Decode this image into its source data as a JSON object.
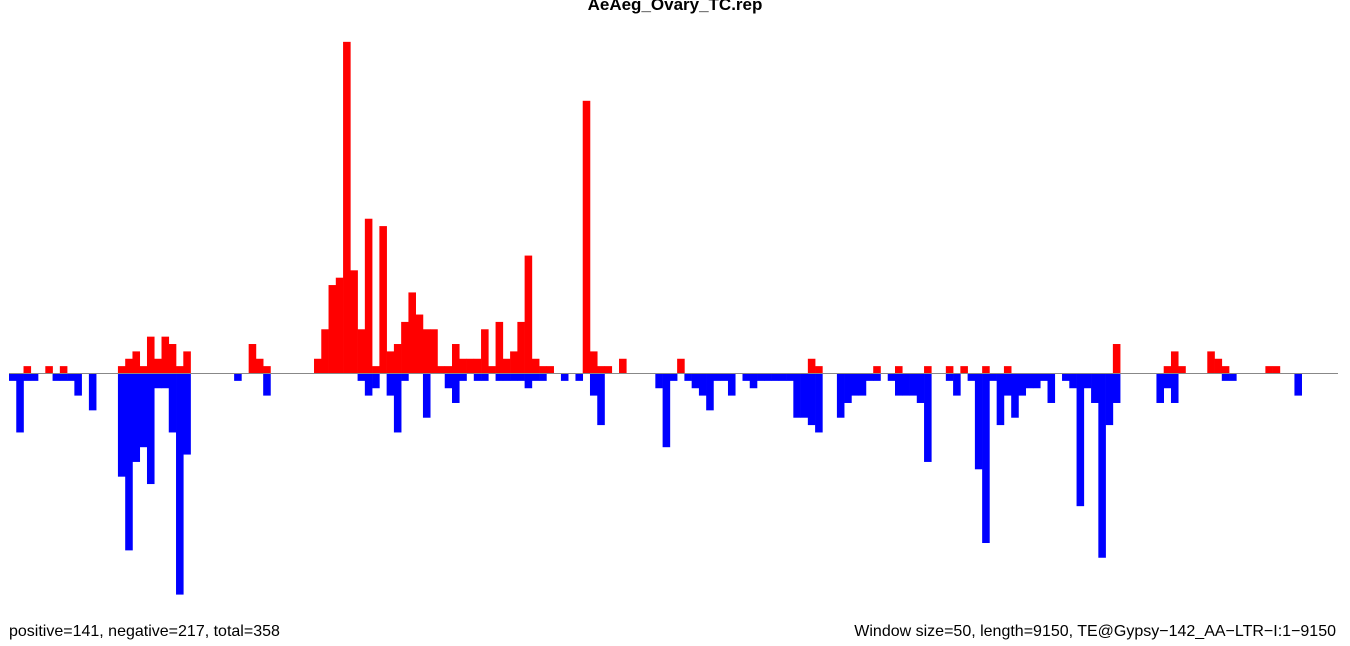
{
  "chart_data": {
    "type": "bar",
    "title": "AeAeg_Ovary_TC.rep",
    "footer_left": "positive=141, negative=217, total=358",
    "footer_right": "Window size=50, length=9150, TE@Gypsy−142_AA−LTR−I:1−9150",
    "x_range": [
      0,
      9150
    ],
    "bin_width": 50,
    "y_range": [
      -26,
      46
    ],
    "colors": {
      "positive": "#ff0000",
      "negative": "#0000ff",
      "baseline": "#888888"
    },
    "series": [
      {
        "name": "positive",
        "bins": [
          [
            2,
            1
          ],
          [
            5,
            1
          ],
          [
            7,
            1
          ],
          [
            15,
            1
          ],
          [
            16,
            2
          ],
          [
            17,
            3
          ],
          [
            18,
            1
          ],
          [
            19,
            5
          ],
          [
            20,
            2
          ],
          [
            21,
            5
          ],
          [
            22,
            4
          ],
          [
            23,
            1
          ],
          [
            24,
            3
          ],
          [
            33,
            4
          ],
          [
            34,
            2
          ],
          [
            35,
            1
          ],
          [
            42,
            2
          ],
          [
            43,
            6
          ],
          [
            44,
            12
          ],
          [
            45,
            13
          ],
          [
            46,
            45
          ],
          [
            47,
            14
          ],
          [
            48,
            6
          ],
          [
            49,
            21
          ],
          [
            50,
            1
          ],
          [
            51,
            20
          ],
          [
            52,
            3
          ],
          [
            53,
            4
          ],
          [
            54,
            7
          ],
          [
            55,
            11
          ],
          [
            56,
            8
          ],
          [
            57,
            6
          ],
          [
            58,
            6
          ],
          [
            59,
            1
          ],
          [
            60,
            1
          ],
          [
            61,
            4
          ],
          [
            62,
            2
          ],
          [
            63,
            2
          ],
          [
            64,
            2
          ],
          [
            65,
            6
          ],
          [
            66,
            1
          ],
          [
            67,
            7
          ],
          [
            68,
            2
          ],
          [
            69,
            3
          ],
          [
            70,
            7
          ],
          [
            71,
            16
          ],
          [
            72,
            2
          ],
          [
            73,
            1
          ],
          [
            74,
            1
          ],
          [
            79,
            37
          ],
          [
            80,
            3
          ],
          [
            81,
            1
          ],
          [
            82,
            1
          ],
          [
            84,
            2
          ],
          [
            92,
            2
          ],
          [
            110,
            2
          ],
          [
            111,
            1
          ],
          [
            119,
            1
          ],
          [
            122,
            1
          ],
          [
            126,
            1
          ],
          [
            129,
            1
          ],
          [
            131,
            1
          ],
          [
            134,
            1
          ],
          [
            137,
            1
          ],
          [
            152,
            4
          ],
          [
            159,
            1
          ],
          [
            160,
            3
          ],
          [
            161,
            1
          ],
          [
            165,
            3
          ],
          [
            166,
            2
          ],
          [
            167,
            1
          ],
          [
            173,
            1
          ],
          [
            174,
            1
          ]
        ]
      },
      {
        "name": "negative",
        "bins": [
          [
            0,
            1
          ],
          [
            1,
            8
          ],
          [
            2,
            1
          ],
          [
            3,
            1
          ],
          [
            6,
            1
          ],
          [
            7,
            1
          ],
          [
            8,
            1
          ],
          [
            9,
            3
          ],
          [
            11,
            5
          ],
          [
            15,
            14
          ],
          [
            16,
            24
          ],
          [
            17,
            12
          ],
          [
            18,
            10
          ],
          [
            19,
            15
          ],
          [
            20,
            2
          ],
          [
            21,
            2
          ],
          [
            22,
            8
          ],
          [
            23,
            30
          ],
          [
            24,
            11
          ],
          [
            31,
            1
          ],
          [
            35,
            3
          ],
          [
            48,
            1
          ],
          [
            49,
            3
          ],
          [
            50,
            2
          ],
          [
            52,
            3
          ],
          [
            53,
            8
          ],
          [
            54,
            1
          ],
          [
            57,
            6
          ],
          [
            60,
            2
          ],
          [
            61,
            4
          ],
          [
            62,
            1
          ],
          [
            64,
            1
          ],
          [
            65,
            1
          ],
          [
            67,
            1
          ],
          [
            68,
            1
          ],
          [
            69,
            1
          ],
          [
            70,
            1
          ],
          [
            71,
            2
          ],
          [
            72,
            1
          ],
          [
            73,
            1
          ],
          [
            76,
            1
          ],
          [
            78,
            1
          ],
          [
            80,
            3
          ],
          [
            81,
            7
          ],
          [
            89,
            2
          ],
          [
            90,
            10
          ],
          [
            91,
            1
          ],
          [
            93,
            1
          ],
          [
            94,
            2
          ],
          [
            95,
            3
          ],
          [
            96,
            5
          ],
          [
            97,
            1
          ],
          [
            98,
            1
          ],
          [
            99,
            3
          ],
          [
            101,
            1
          ],
          [
            102,
            2
          ],
          [
            103,
            1
          ],
          [
            104,
            1
          ],
          [
            105,
            1
          ],
          [
            106,
            1
          ],
          [
            107,
            1
          ],
          [
            108,
            6
          ],
          [
            109,
            6
          ],
          [
            110,
            7
          ],
          [
            111,
            8
          ],
          [
            114,
            6
          ],
          [
            115,
            4
          ],
          [
            116,
            3
          ],
          [
            117,
            3
          ],
          [
            118,
            1
          ],
          [
            119,
            1
          ],
          [
            121,
            1
          ],
          [
            122,
            3
          ],
          [
            123,
            3
          ],
          [
            124,
            3
          ],
          [
            125,
            4
          ],
          [
            126,
            12
          ],
          [
            129,
            1
          ],
          [
            130,
            3
          ],
          [
            132,
            1
          ],
          [
            133,
            13
          ],
          [
            134,
            23
          ],
          [
            135,
            1
          ],
          [
            136,
            7
          ],
          [
            137,
            3
          ],
          [
            138,
            6
          ],
          [
            139,
            3
          ],
          [
            140,
            2
          ],
          [
            141,
            2
          ],
          [
            142,
            1
          ],
          [
            143,
            4
          ],
          [
            145,
            1
          ],
          [
            146,
            2
          ],
          [
            147,
            18
          ],
          [
            148,
            2
          ],
          [
            149,
            4
          ],
          [
            150,
            25
          ],
          [
            151,
            7
          ],
          [
            152,
            4
          ],
          [
            158,
            4
          ],
          [
            159,
            2
          ],
          [
            160,
            4
          ],
          [
            167,
            1
          ],
          [
            168,
            1
          ],
          [
            177,
            3
          ]
        ]
      }
    ]
  }
}
